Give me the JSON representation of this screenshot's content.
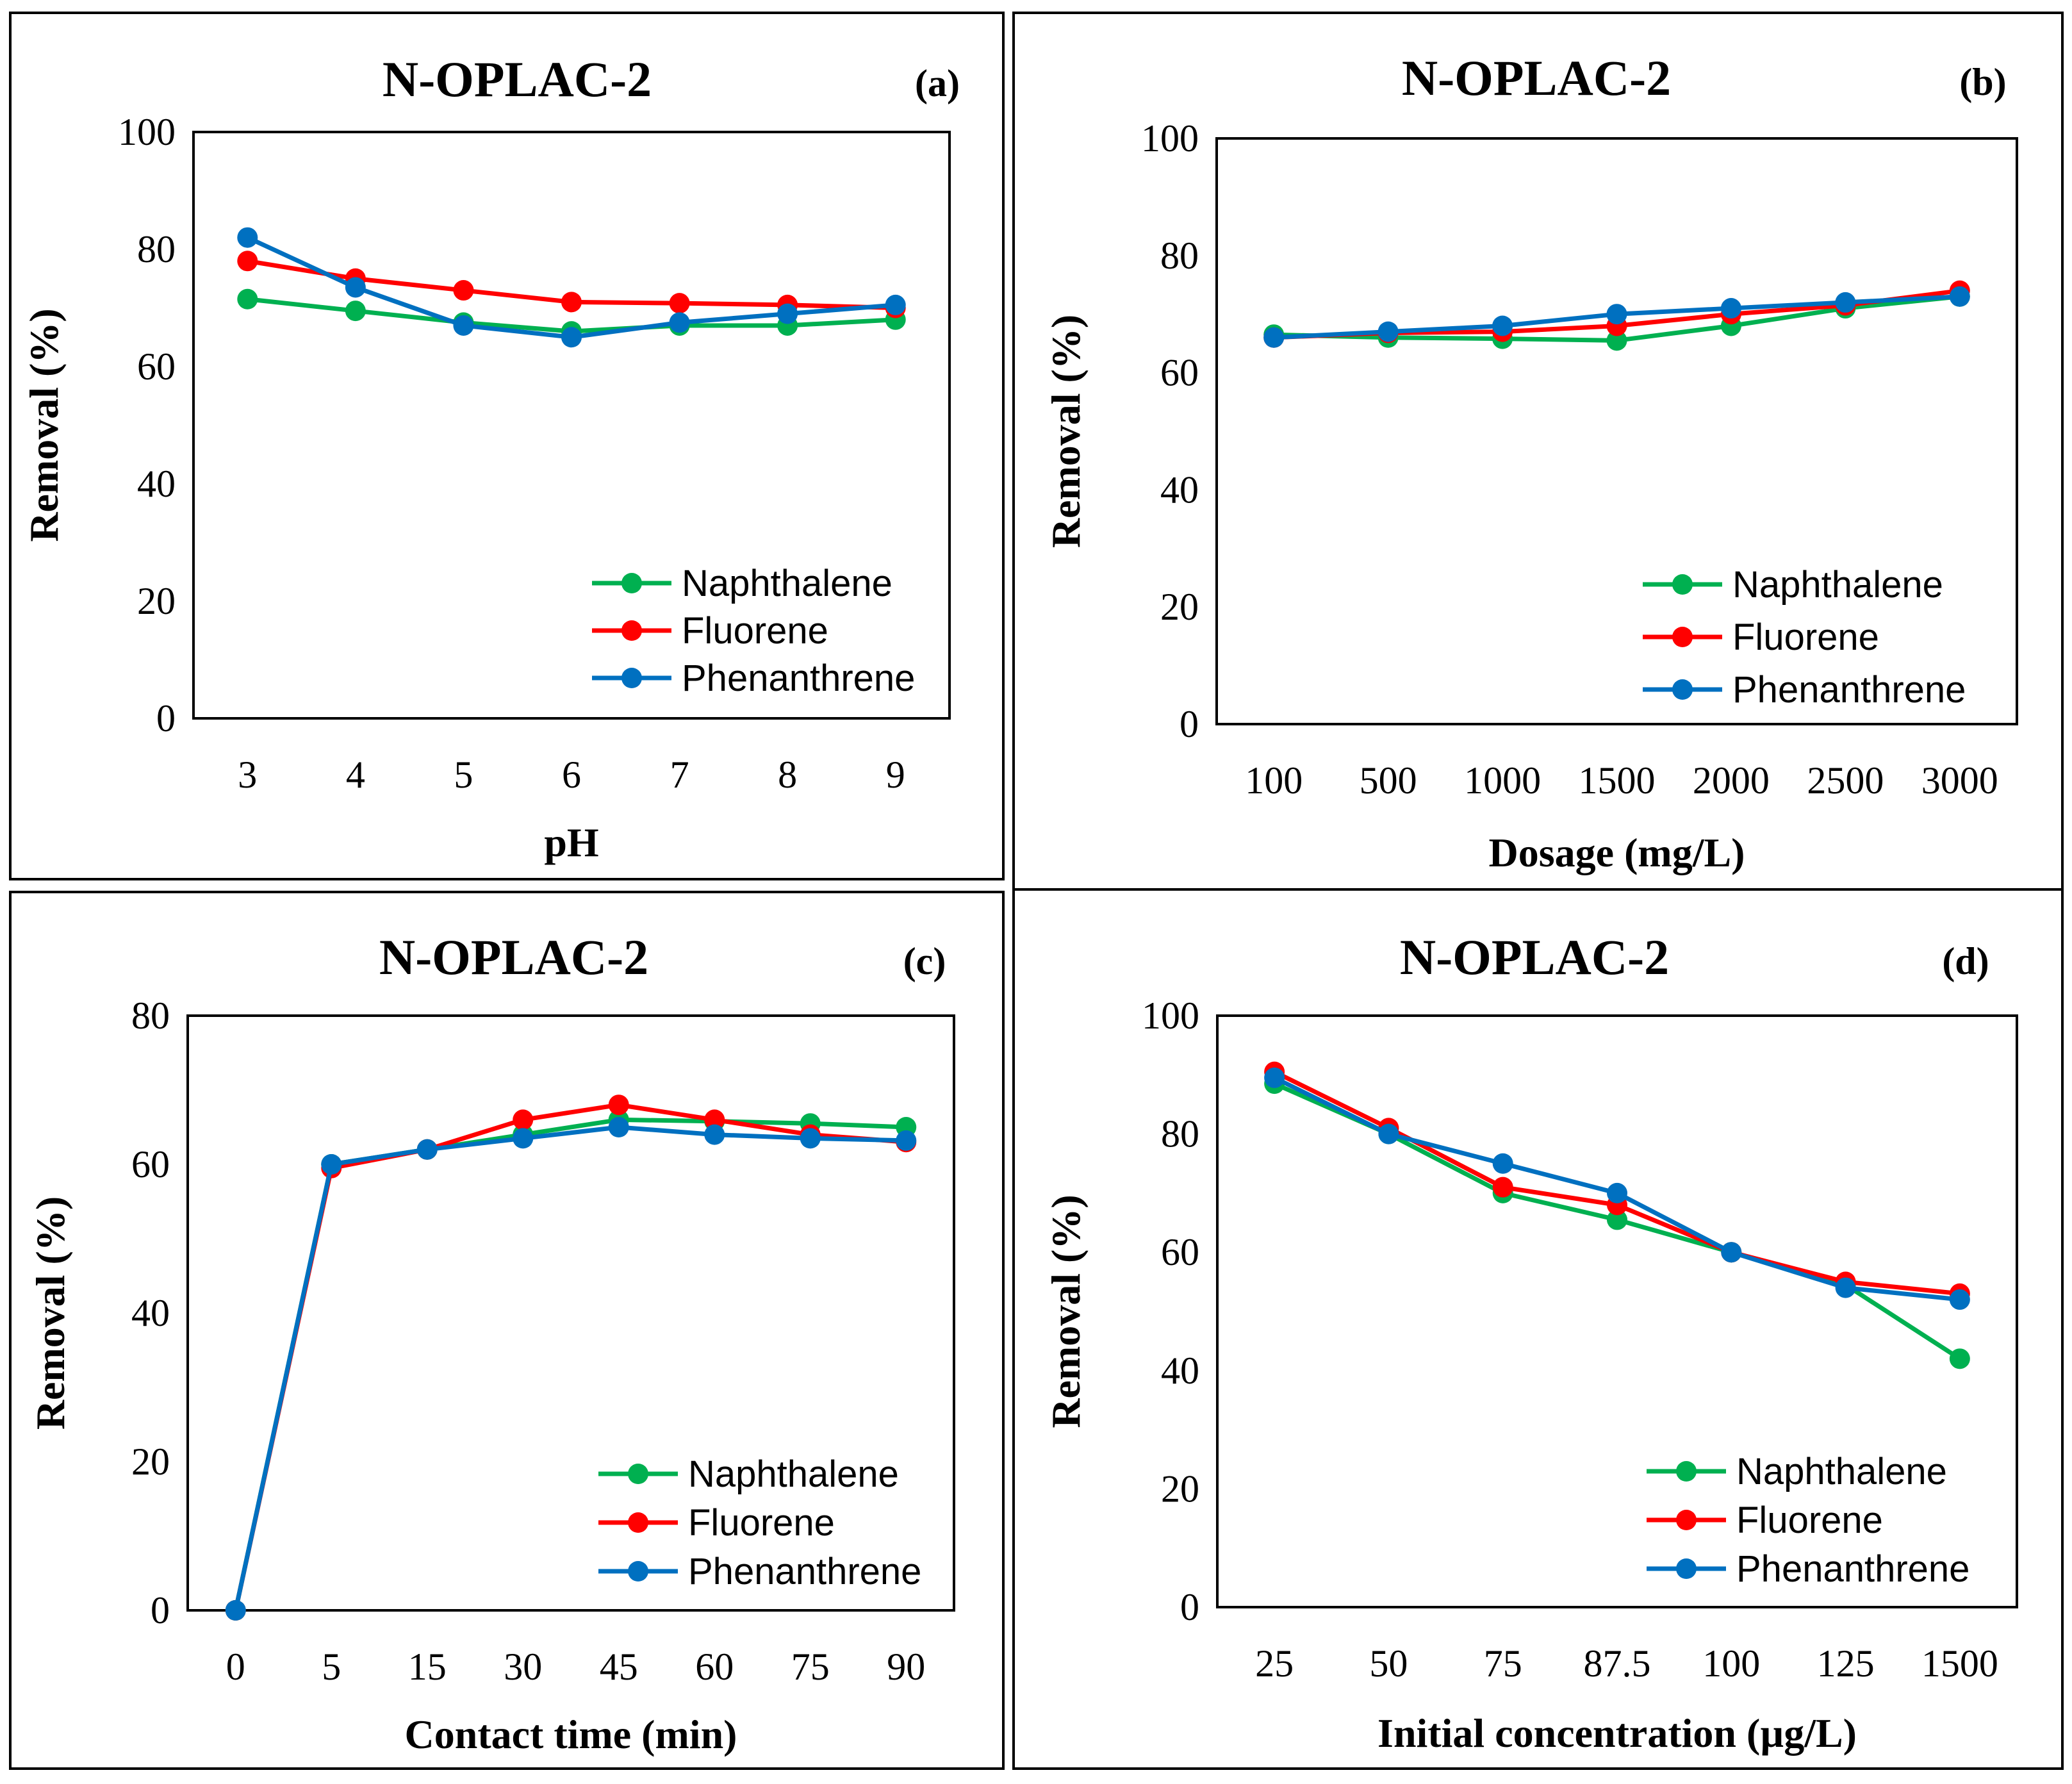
{
  "chart_data": [
    {
      "type": "line",
      "title": "N-OPLAC-2",
      "panel_label": "(a)",
      "xlabel": "pH",
      "ylabel": "Removal (%)",
      "ylim": [
        0,
        100
      ],
      "yticks": [
        "0",
        "20",
        "40",
        "60",
        "80",
        "100"
      ],
      "categories": [
        "3",
        "4",
        "5",
        "6",
        "7",
        "8",
        "9"
      ],
      "legend_position": "bottom-right",
      "series": [
        {
          "name": "Naphthalene",
          "color": "#00b050",
          "values": [
            71.5,
            69.5,
            67.5,
            66,
            67,
            67,
            68
          ]
        },
        {
          "name": "Fluorene",
          "color": "#ff0000",
          "values": [
            78,
            75,
            73,
            71,
            70.8,
            70.5,
            70
          ]
        },
        {
          "name": "Phenanthrene",
          "color": "#0070c0",
          "values": [
            82,
            73.5,
            67,
            65,
            67.5,
            69,
            70.5
          ]
        }
      ]
    },
    {
      "type": "line",
      "title": "N-OPLAC-2",
      "panel_label": "(b)",
      "xlabel": "Dosage (mg/L)",
      "ylabel": "Removal (%)",
      "ylim": [
        0,
        100
      ],
      "yticks": [
        "0",
        "20",
        "40",
        "60",
        "80",
        "100"
      ],
      "categories": [
        "100",
        "500",
        "1000",
        "1500",
        "2000",
        "2500",
        "3000"
      ],
      "legend_position": "bottom-right",
      "series": [
        {
          "name": "Naphthalene",
          "color": "#00b050",
          "values": [
            66.5,
            66,
            65.8,
            65.5,
            68,
            71,
            73
          ]
        },
        {
          "name": "Fluorene",
          "color": "#ff0000",
          "values": [
            66,
            66.8,
            67,
            68,
            70,
            71.5,
            74
          ]
        },
        {
          "name": "Phenanthrene",
          "color": "#0070c0",
          "values": [
            66,
            67,
            68,
            70,
            71,
            72,
            73
          ]
        }
      ]
    },
    {
      "type": "line",
      "title": "N-OPLAC-2",
      "panel_label": "(c)",
      "xlabel": "Contact time (min)",
      "ylabel": "Removal (%)",
      "ylim": [
        0,
        80
      ],
      "yticks": [
        "0",
        "20",
        "40",
        "60",
        "80"
      ],
      "categories": [
        "0",
        "5",
        "15",
        "30",
        "45",
        "60",
        "75",
        "90"
      ],
      "legend_position": "bottom-right",
      "series": [
        {
          "name": "Naphthalene",
          "color": "#00b050",
          "values": [
            0,
            60,
            62,
            64,
            66,
            65.8,
            65.5,
            65
          ]
        },
        {
          "name": "Fluorene",
          "color": "#ff0000",
          "values": [
            0,
            59.5,
            62,
            66,
            68,
            66,
            64,
            63
          ]
        },
        {
          "name": "Phenanthrene",
          "color": "#0070c0",
          "values": [
            0,
            60,
            62,
            63.5,
            65,
            64,
            63.5,
            63.2
          ]
        }
      ]
    },
    {
      "type": "line",
      "title": "N-OPLAC-2",
      "panel_label": "(d)",
      "xlabel": "Initial concentration (µg/L)",
      "ylabel": "Removal (%)",
      "ylim": [
        0,
        100
      ],
      "yticks": [
        "0",
        "20",
        "40",
        "60",
        "80",
        "100"
      ],
      "categories": [
        "25",
        "50",
        "75",
        "87.5",
        "100",
        "125",
        "1500"
      ],
      "legend_position": "bottom-right",
      "series": [
        {
          "name": "Naphthalene",
          "color": "#00b050",
          "values": [
            88.5,
            80,
            70,
            65.5,
            60,
            54.5,
            42
          ]
        },
        {
          "name": "Fluorene",
          "color": "#ff0000",
          "values": [
            90.5,
            81,
            71,
            68,
            60,
            55,
            53
          ]
        },
        {
          "name": "Phenanthrene",
          "color": "#0070c0",
          "values": [
            89.5,
            80,
            75,
            70,
            60,
            54,
            52
          ]
        }
      ]
    }
  ]
}
